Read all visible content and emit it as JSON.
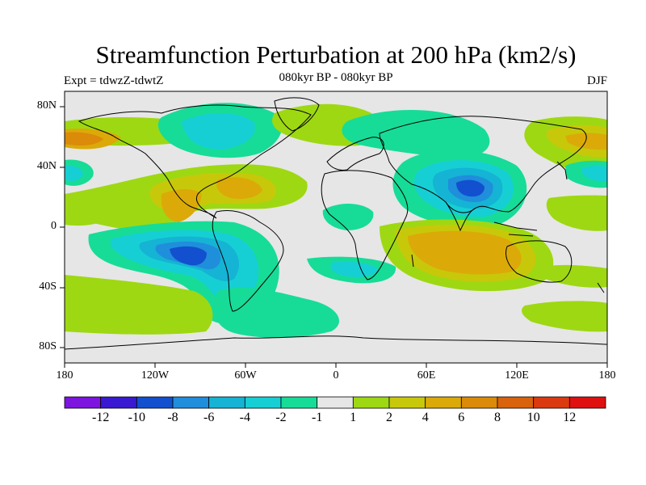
{
  "title": "Streamfunction Perturbation at 200 hPa (km2/s)",
  "subtitle": "080kyr BP - 080kyr BP",
  "experiment": "Expt = tdwzZ-tdwtZ",
  "season": "DJF",
  "y_axis_labels": [
    "80N",
    "40N",
    "0",
    "40S",
    "80S"
  ],
  "x_axis_labels": [
    "180",
    "120W",
    "60W",
    "0",
    "60E",
    "120E",
    "180"
  ],
  "colorbar": {
    "colors": [
      "#7d14e0",
      "#3a19d2",
      "#1250cf",
      "#1f8edb",
      "#15b3d4",
      "#16cfd4",
      "#16dc98",
      "#e6e6e6",
      "#9ed812",
      "#c8c80a",
      "#dbaa08",
      "#db8a0a",
      "#d9620c",
      "#db3a10",
      "#e01010"
    ],
    "labels": [
      "-12",
      "-10",
      "-8",
      "-6",
      "-4",
      "-2",
      "-1",
      "1",
      "2",
      "4",
      "6",
      "8",
      "10",
      "12"
    ]
  }
}
